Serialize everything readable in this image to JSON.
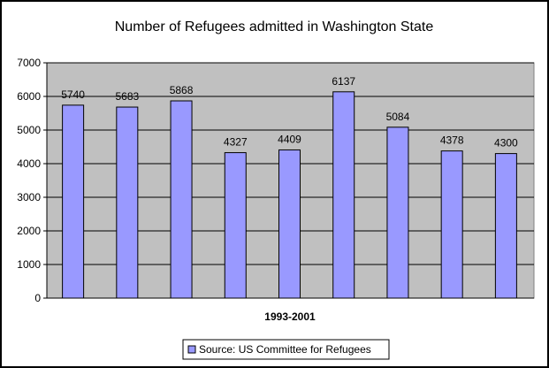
{
  "chart_data": {
    "type": "bar",
    "title": "Number of Refugees admitted in Washington State",
    "xlabel": "1993-2001",
    "ylabel": "",
    "ylim": [
      0,
      7000
    ],
    "yticks": [
      0,
      1000,
      2000,
      3000,
      4000,
      5000,
      6000,
      7000
    ],
    "categories": [
      "",
      "",
      "",
      "",
      "",
      "",
      "",
      "",
      ""
    ],
    "series": [
      {
        "name": "Source: US Committee for Refugees",
        "values": [
          5740,
          5683,
          5868,
          4327,
          4409,
          6137,
          5084,
          4378,
          4300
        ],
        "color": "#9999ff"
      }
    ],
    "grid": true,
    "legend_position": "bottom-center",
    "plot_background": "#c0c0c0"
  }
}
